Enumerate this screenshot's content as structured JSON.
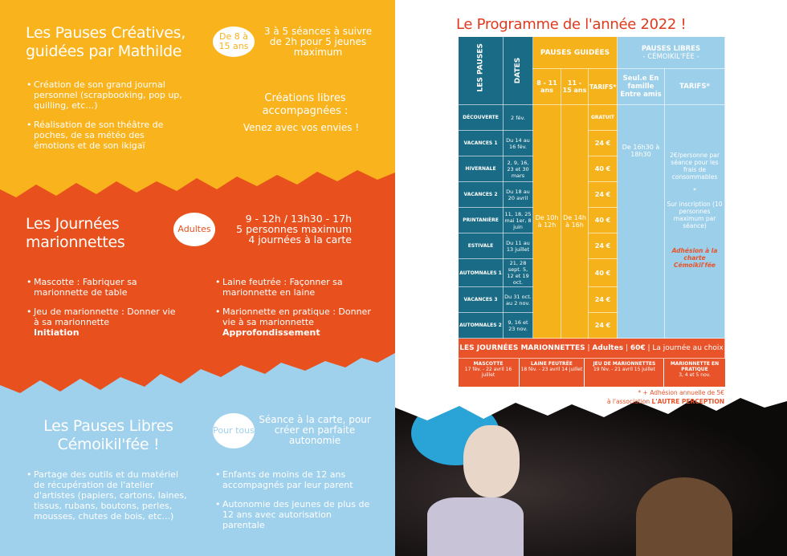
{
  "left": {
    "creatives": {
      "title": "Les Pauses Créatives, guidées par Mathilde",
      "badge": "De 8 à 15 ans",
      "info": "3 à 5 séances à suivre de 2h pour 5 jeunes maximum",
      "items": [
        "Création de son grand journal personnel (scrapbooking, pop up, quilling, etc…)",
        "Réalisation de son théâtre de poches, de sa météo des émotions et de son ikigaï"
      ],
      "free_title": "Créations libres accompagnées :",
      "free_sub": "Venez avec vos envies !"
    },
    "journees": {
      "title": "Les Journées marionnettes",
      "badge": "Adultes",
      "info": [
        "9 - 12h / 13h30 - 17h",
        "5 personnes maximum",
        "4 journées à la carte"
      ],
      "items_left": [
        {
          "text": "Mascotte : Fabriquer sa marionnette de table"
        },
        {
          "text": "Jeu de marionnette : Donner vie à sa marionnette",
          "bold": "Initiation"
        }
      ],
      "items_right": [
        {
          "text": "Laine feutrée : Façonner sa marionnette en laine"
        },
        {
          "text": "Marionnette en pratique : Donner vie à sa marionnette",
          "bold": "Approfondissement"
        }
      ]
    },
    "libres": {
      "title": "Les Pauses Libres Cémoikil'fée !",
      "badge": "Pour tous",
      "info": "Séance à la carte, pour créer en parfaite autonomie",
      "items_left": [
        "Partage des outils et du matériel de récupération de l'atelier d'artistes (papiers, cartons, laines, tissus, rubans, boutons, perles, mousses, chutes de bois, etc...)"
      ],
      "items_right": [
        "Enfants de moins de 12 ans accompagnés par leur parent",
        "Autonomie des jeunes de plus de 12 ans avec autorisation parentale"
      ]
    }
  },
  "programme": {
    "title": "Le Programme de l'année 2022 !",
    "headers": {
      "pauses": "LES PAUSES",
      "dates": "DATES",
      "guidees": "PAUSES GUIDÉES",
      "libres": "PAUSES LIBRES",
      "libres_sub": "- CÉMOIKIL'FÉE -",
      "age1": "8 - 11 ans",
      "age2": "11 - 15 ans",
      "tarifs": "TARIFS*",
      "seule": "Seul.e En famille Entre amis",
      "tarifs2": "TARIFS*"
    },
    "rows": [
      {
        "name": "DÉCOUVERTE",
        "dates": "2 fév.",
        "tarif": "GRATUIT"
      },
      {
        "name": "VACANCES 1",
        "dates": "Du 14 au 16 fév.",
        "tarif": "24 €"
      },
      {
        "name": "HIVERNALE",
        "dates": "2, 9, 16, 23 et 30 mars",
        "tarif": "40 €"
      },
      {
        "name": "VACANCES 2",
        "dates": "Du 18 au 20 avril",
        "tarif": "24 €"
      },
      {
        "name": "PRINTANIÈRE",
        "dates": "11, 18, 25 mai 1er, 8 juin",
        "tarif": "40 €"
      },
      {
        "name": "ESTIVALE",
        "dates": "Du 11 au 13 juillet",
        "tarif": "24 €"
      },
      {
        "name": "AUTOMNALES 1",
        "dates": "21, 28 sept. 5, 12 et 19 oct.",
        "tarif": "40 €"
      },
      {
        "name": "VACANCES 3",
        "dates": "Du 31 oct. au 2 nov.",
        "tarif": "24 €"
      },
      {
        "name": "AUTOMNALES 2",
        "dates": "9, 16 et 23 nov.",
        "tarif": "24 €"
      }
    ],
    "hours1": "De 10h à 12h",
    "hours2": "De 14h à 16h",
    "libre_hours": "De 16h30 à 18h30",
    "libre_tarif": "2€/personne par séance pour les frais de consommables",
    "libre_star": "*",
    "libre_inscr": "Sur inscription (10 personnes maximum par séance)",
    "libre_charte": "Adhésion à la charte Cémoikil'fée",
    "journees": {
      "title": "LES JOURNÉES MARIONNETTES",
      "adultes": "Adultes",
      "prix": "60€",
      "choix": "La journée au choix",
      "items": [
        {
          "name": "MASCOTTE",
          "dates": "17 fév. - 22 avril 16 juillet"
        },
        {
          "name": "LAINE FEUTRÉE",
          "dates": "18 fév. - 23 avril 14 juillet"
        },
        {
          "name": "JEU DE MARIONNETTES",
          "dates": "19 fév. - 21 avril 15 juillet"
        },
        {
          "name": "MARIONNETTE EN PRATIQUE",
          "dates": "3, 4 et 5 nov."
        }
      ]
    },
    "note1": "* + Adhésion annuelle de 5€",
    "note2": "à l'association",
    "note2_bold": "L'AUTRE PERCEPTION"
  },
  "colors": {
    "yellow": "#f6b21b",
    "orange": "#e8532a",
    "blue": "#9ccfe9",
    "teal": "#1a6b85"
  }
}
